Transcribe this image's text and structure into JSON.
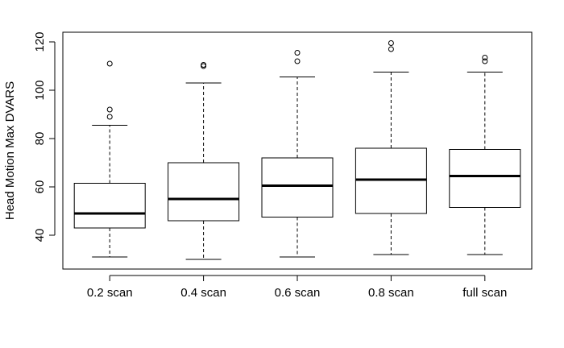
{
  "chart_data": {
    "type": "box",
    "title": "",
    "xlabel": "",
    "ylabel": "Head Motion Max DVARS",
    "ylim": [
      26,
      124
    ],
    "yticks": [
      40,
      60,
      80,
      100,
      120
    ],
    "ytick_labels": [
      "40",
      "60",
      "80",
      "100",
      "120"
    ],
    "grid": false,
    "legend": "none",
    "categories": [
      "0.2 scan",
      "0.4 scan",
      "0.6 scan",
      "0.8 scan",
      "full scan"
    ],
    "boxes": [
      {
        "category": "0.2 scan",
        "whisker_low": 31,
        "q1": 43,
        "median": 49,
        "q3": 61.5,
        "whisker_high": 85.5,
        "outliers": [
          89,
          92,
          111
        ]
      },
      {
        "category": "0.4 scan",
        "whisker_low": 30,
        "q1": 46,
        "median": 55,
        "q3": 70,
        "whisker_high": 103,
        "outliers": [
          110,
          110.5
        ]
      },
      {
        "category": "0.6 scan",
        "whisker_low": 31,
        "q1": 47.5,
        "median": 60.5,
        "q3": 72,
        "whisker_high": 105.5,
        "outliers": [
          112,
          115.5
        ]
      },
      {
        "category": "0.8 scan",
        "whisker_low": 32,
        "q1": 49,
        "median": 63,
        "q3": 76,
        "whisker_high": 107.5,
        "outliers": [
          117,
          119.5
        ]
      },
      {
        "category": "full scan",
        "whisker_low": 32,
        "q1": 51.5,
        "median": 64.5,
        "q3": 75.5,
        "whisker_high": 107.5,
        "outliers": [
          112,
          113.5
        ]
      }
    ]
  }
}
